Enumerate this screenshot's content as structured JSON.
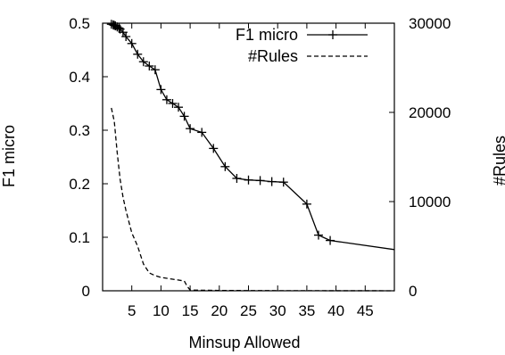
{
  "chart_data": {
    "type": "line",
    "title": "",
    "xlabel": "Minsup Allowed",
    "ylabel_left": "F1 micro",
    "ylabel_right": "#Rules",
    "xlim": [
      0,
      50
    ],
    "ylim_left": [
      0,
      0.5
    ],
    "ylim_right": [
      0,
      30000
    ],
    "x_ticks": [
      5,
      10,
      15,
      20,
      25,
      30,
      35,
      40,
      45
    ],
    "x_tick_labels": [
      "5",
      "10",
      "15",
      "20",
      "25",
      "30",
      "35",
      "40",
      "45"
    ],
    "y_ticks_left": [
      0,
      0.1,
      0.2,
      0.3,
      0.4,
      0.5
    ],
    "y_tick_labels_left": [
      "0",
      "0.1",
      "0.2",
      "0.3",
      "0.4",
      "0.5"
    ],
    "y_ticks_right": [
      0,
      10000,
      20000,
      30000
    ],
    "y_tick_labels_right": [
      "0",
      "10000",
      "20000",
      "30000"
    ],
    "grid": false,
    "legend_position": "top-right",
    "series": [
      {
        "name": "F1 micro",
        "axis": "left",
        "style": "solid-plus-markers",
        "color": "#000000",
        "x": [
          1.5,
          1.8,
          2.0,
          2.2,
          2.5,
          2.8,
          3.0,
          3.5,
          4.0,
          5.0,
          6.0,
          7.0,
          8.0,
          9.0,
          10.0,
          11.0,
          12.0,
          13.0,
          14.0,
          15.0,
          17.0,
          19.0,
          21.0,
          23.0,
          25.0,
          27.0,
          29.0,
          31.0,
          35.0,
          37.0,
          39.0,
          50.0
        ],
        "y": [
          0.498,
          0.497,
          0.496,
          0.495,
          0.493,
          0.491,
          0.489,
          0.483,
          0.475,
          0.462,
          0.442,
          0.428,
          0.42,
          0.413,
          0.376,
          0.357,
          0.35,
          0.343,
          0.326,
          0.303,
          0.296,
          0.266,
          0.232,
          0.21,
          0.207,
          0.206,
          0.204,
          0.203,
          0.162,
          0.104,
          0.094,
          0.077
        ]
      },
      {
        "name": "#Rules",
        "axis": "right",
        "style": "dashed",
        "color": "#000000",
        "x": [
          1.5,
          2.0,
          2.5,
          3.0,
          3.5,
          4.0,
          5.0,
          6.0,
          7.0,
          8.0,
          9.0,
          10.0,
          12.0,
          14.0,
          14.5,
          15.0,
          20.0,
          25.0,
          30.0,
          35.0,
          40.0,
          45.0,
          50.0
        ],
        "y": [
          20500,
          19000,
          15500,
          12500,
          10500,
          9000,
          6500,
          5000,
          3000,
          2000,
          1700,
          1500,
          1300,
          1100,
          500,
          80,
          40,
          25,
          15,
          10,
          8,
          5,
          3
        ]
      }
    ]
  }
}
